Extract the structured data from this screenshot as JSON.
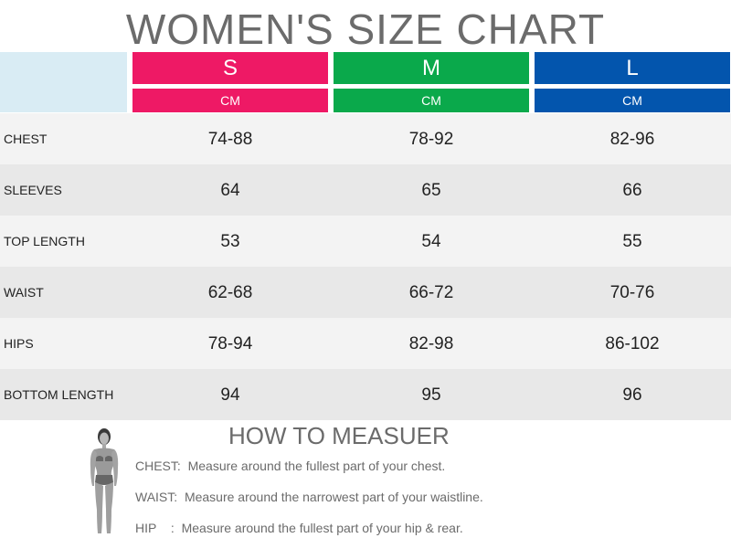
{
  "title": "WOMEN'S SIZE CHART",
  "sizes": [
    {
      "label": "S",
      "unit": "CM",
      "color": "#ee1965"
    },
    {
      "label": "M",
      "unit": "CM",
      "color": "#0aa94b"
    },
    {
      "label": "L",
      "unit": "CM",
      "color": "#0355ad"
    }
  ],
  "rows": [
    {
      "label": "CHEST",
      "values": [
        "74-88",
        "78-92",
        "82-96"
      ]
    },
    {
      "label": "SLEEVES",
      "values": [
        "64",
        "65",
        "66"
      ]
    },
    {
      "label": "TOP LENGTH",
      "values": [
        "53",
        "54",
        "55"
      ]
    },
    {
      "label": "WAIST",
      "values": [
        "62-68",
        "66-72",
        "70-76"
      ]
    },
    {
      "label": "HIPS",
      "values": [
        "78-94",
        "82-98",
        "86-102"
      ]
    },
    {
      "label": "BOTTOM LENGTH",
      "values": [
        "94",
        "95",
        "96"
      ]
    }
  ],
  "howto": {
    "title": "HOW TO MEASUER",
    "items": [
      {
        "key": "CHEST:",
        "text": "Measure around the fullest part of your chest."
      },
      {
        "key": "WAIST:",
        "text": "Measure around the narrowest part of your waistline."
      },
      {
        "key": "HIP    :",
        "text": "Measure around the fullest part of your hip & rear."
      }
    ]
  },
  "icons": {
    "figure": "woman-silhouette-icon"
  }
}
